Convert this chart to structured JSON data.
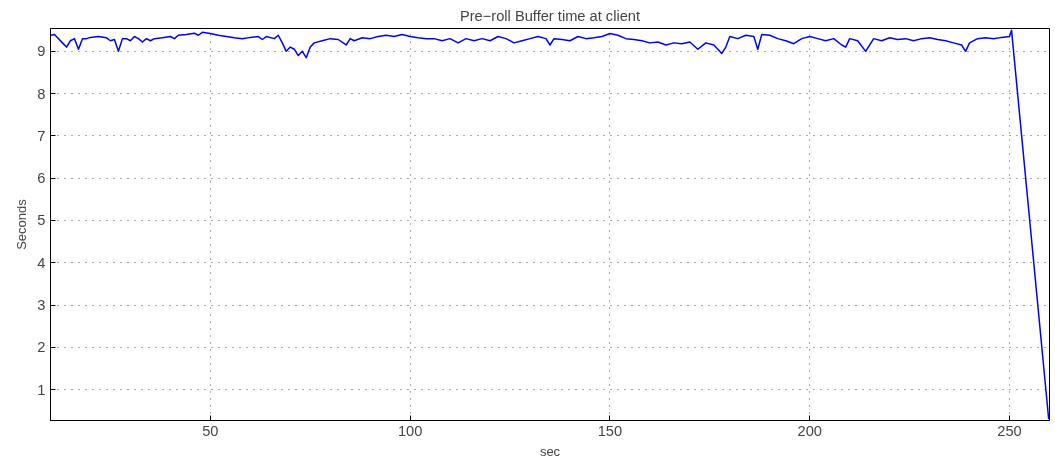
{
  "chart_data": {
    "type": "line",
    "title": "Pre−roll Buffer time at client",
    "xlabel": "sec",
    "ylabel": "Seconds",
    "xlim": [
      10,
      260
    ],
    "ylim": [
      0.27,
      9.54
    ],
    "xticks": [
      50,
      100,
      150,
      200,
      250
    ],
    "yticks": [
      1,
      2,
      3,
      4,
      5,
      6,
      7,
      8,
      9
    ],
    "grid": true,
    "line_style": "solid",
    "series": [
      {
        "color": "#0000ff",
        "x": [
          10,
          11,
          12,
          13,
          14,
          15,
          16,
          17,
          18,
          19,
          20,
          22,
          24,
          25,
          26,
          27,
          28,
          29,
          30,
          31,
          32,
          33,
          34,
          35,
          36,
          38,
          40,
          41,
          42,
          44,
          46,
          47,
          48,
          50,
          52,
          54,
          56,
          58,
          60,
          62,
          63,
          64,
          66,
          67,
          68,
          69,
          70,
          71,
          72,
          73,
          74,
          75,
          76,
          78,
          80,
          82,
          84,
          85,
          86,
          88,
          90,
          92,
          94,
          96,
          98,
          100,
          102,
          104,
          106,
          108,
          110,
          112,
          114,
          116,
          118,
          120,
          122,
          124,
          126,
          128,
          130,
          132,
          134,
          135,
          136,
          138,
          140,
          142,
          144,
          146,
          148,
          150,
          152,
          154,
          156,
          158,
          160,
          162,
          164,
          166,
          168,
          170,
          172,
          174,
          176,
          177,
          178,
          179,
          180,
          182,
          184,
          186,
          187,
          188,
          190,
          192,
          194,
          196,
          198,
          200,
          202,
          204,
          206,
          208,
          209,
          210,
          212,
          214,
          216,
          218,
          220,
          222,
          224,
          226,
          228,
          230,
          232,
          234,
          236,
          238,
          239,
          240,
          242,
          244,
          246,
          248,
          250,
          250.5,
          259.8
        ],
        "values": [
          9.38,
          9.4,
          9.3,
          9.2,
          9.1,
          9.25,
          9.3,
          9.05,
          9.3,
          9.3,
          9.33,
          9.35,
          9.32,
          9.25,
          9.28,
          9.0,
          9.3,
          9.3,
          9.25,
          9.35,
          9.3,
          9.22,
          9.3,
          9.25,
          9.3,
          9.32,
          9.35,
          9.3,
          9.38,
          9.4,
          9.43,
          9.38,
          9.45,
          9.42,
          9.38,
          9.35,
          9.32,
          9.3,
          9.33,
          9.35,
          9.28,
          9.35,
          9.3,
          9.38,
          9.2,
          9.0,
          9.1,
          9.05,
          8.9,
          9.0,
          8.85,
          9.1,
          9.2,
          9.25,
          9.3,
          9.28,
          9.15,
          9.3,
          9.25,
          9.32,
          9.3,
          9.35,
          9.38,
          9.35,
          9.4,
          9.35,
          9.32,
          9.3,
          9.3,
          9.25,
          9.3,
          9.2,
          9.3,
          9.25,
          9.3,
          9.25,
          9.35,
          9.3,
          9.2,
          9.25,
          9.3,
          9.35,
          9.3,
          9.15,
          9.3,
          9.28,
          9.25,
          9.35,
          9.3,
          9.32,
          9.35,
          9.42,
          9.38,
          9.3,
          9.28,
          9.25,
          9.2,
          9.22,
          9.15,
          9.2,
          9.18,
          9.22,
          9.05,
          9.2,
          9.15,
          9.05,
          8.95,
          9.1,
          9.35,
          9.3,
          9.38,
          9.35,
          9.05,
          9.4,
          9.38,
          9.3,
          9.25,
          9.18,
          9.3,
          9.35,
          9.3,
          9.25,
          9.3,
          9.15,
          9.1,
          9.3,
          9.25,
          9.0,
          9.3,
          9.25,
          9.32,
          9.28,
          9.3,
          9.25,
          9.3,
          9.32,
          9.28,
          9.25,
          9.2,
          9.15,
          9.0,
          9.2,
          9.3,
          9.32,
          9.3,
          9.33,
          9.35,
          9.5,
          0.3
        ]
      }
    ]
  }
}
